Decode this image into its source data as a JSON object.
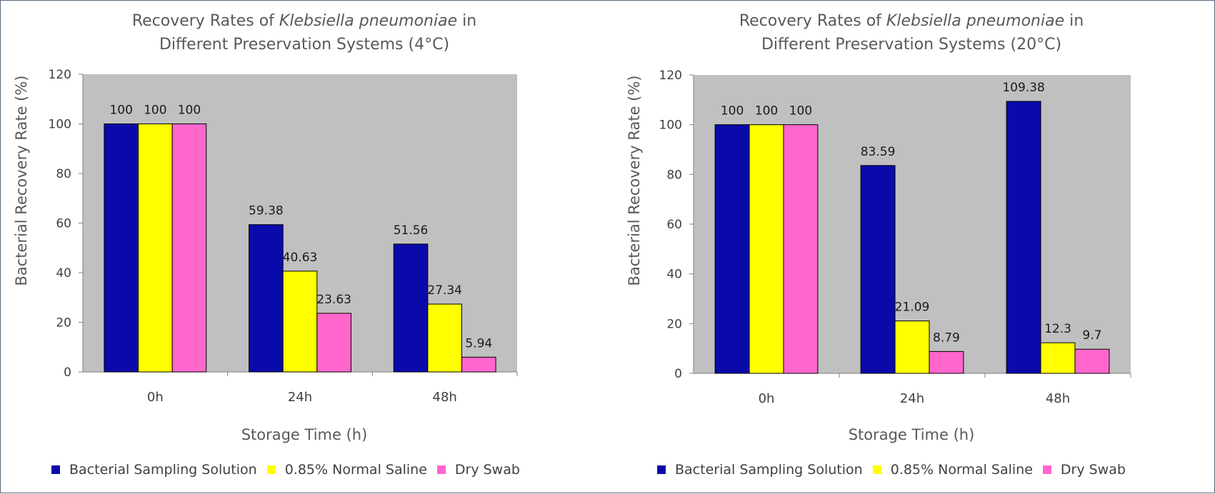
{
  "chart_data": [
    {
      "type": "bar",
      "title": {
        "prefix": "Recovery Rates of ",
        "italic": "Klebsiella pneumoniae",
        "suffix": " in",
        "line2": "Different Preservation Systems (4°C)"
      },
      "xlabel": "Storage Time (h)",
      "ylabel": "Bacterial Recovery Rate (%)",
      "ylim": [
        0,
        120
      ],
      "yticks": [
        0,
        20,
        40,
        60,
        80,
        100,
        120
      ],
      "categories": [
        "0h",
        "24h",
        "48h"
      ],
      "series": [
        {
          "name": "Bacterial Sampling Solution",
          "color": "#0a0aaa",
          "values": [
            100,
            59.38,
            51.56
          ]
        },
        {
          "name": "0.85% Normal Saline",
          "color": "#ffff00",
          "values": [
            100,
            40.63,
            27.34
          ]
        },
        {
          "name": "Dry Swab",
          "color": "#ff66cc",
          "values": [
            100,
            23.63,
            5.94
          ]
        }
      ],
      "plot_background": "#c0c0c0",
      "legend": "bottom"
    },
    {
      "type": "bar",
      "title": {
        "prefix": "Recovery Rates of ",
        "italic": "Klebsiella pneumoniae",
        "suffix": " in",
        "line2": "Different Preservation Systems (20°C)"
      },
      "xlabel": "Storage Time (h)",
      "ylabel": "Bacterial Recovery Rate (%)",
      "ylim": [
        0,
        120
      ],
      "yticks": [
        0,
        20,
        40,
        60,
        80,
        100,
        120
      ],
      "categories": [
        "0h",
        "24h",
        "48h"
      ],
      "series": [
        {
          "name": "Bacterial Sampling Solution",
          "color": "#0a0aaa",
          "values": [
            100,
            83.59,
            109.38
          ]
        },
        {
          "name": "0.85% Normal Saline",
          "color": "#ffff00",
          "values": [
            100,
            21.09,
            12.3
          ]
        },
        {
          "name": "Dry Swab",
          "color": "#ff66cc",
          "values": [
            100,
            8.79,
            9.7
          ]
        }
      ],
      "plot_background": "#c0c0c0",
      "legend": "bottom"
    }
  ]
}
